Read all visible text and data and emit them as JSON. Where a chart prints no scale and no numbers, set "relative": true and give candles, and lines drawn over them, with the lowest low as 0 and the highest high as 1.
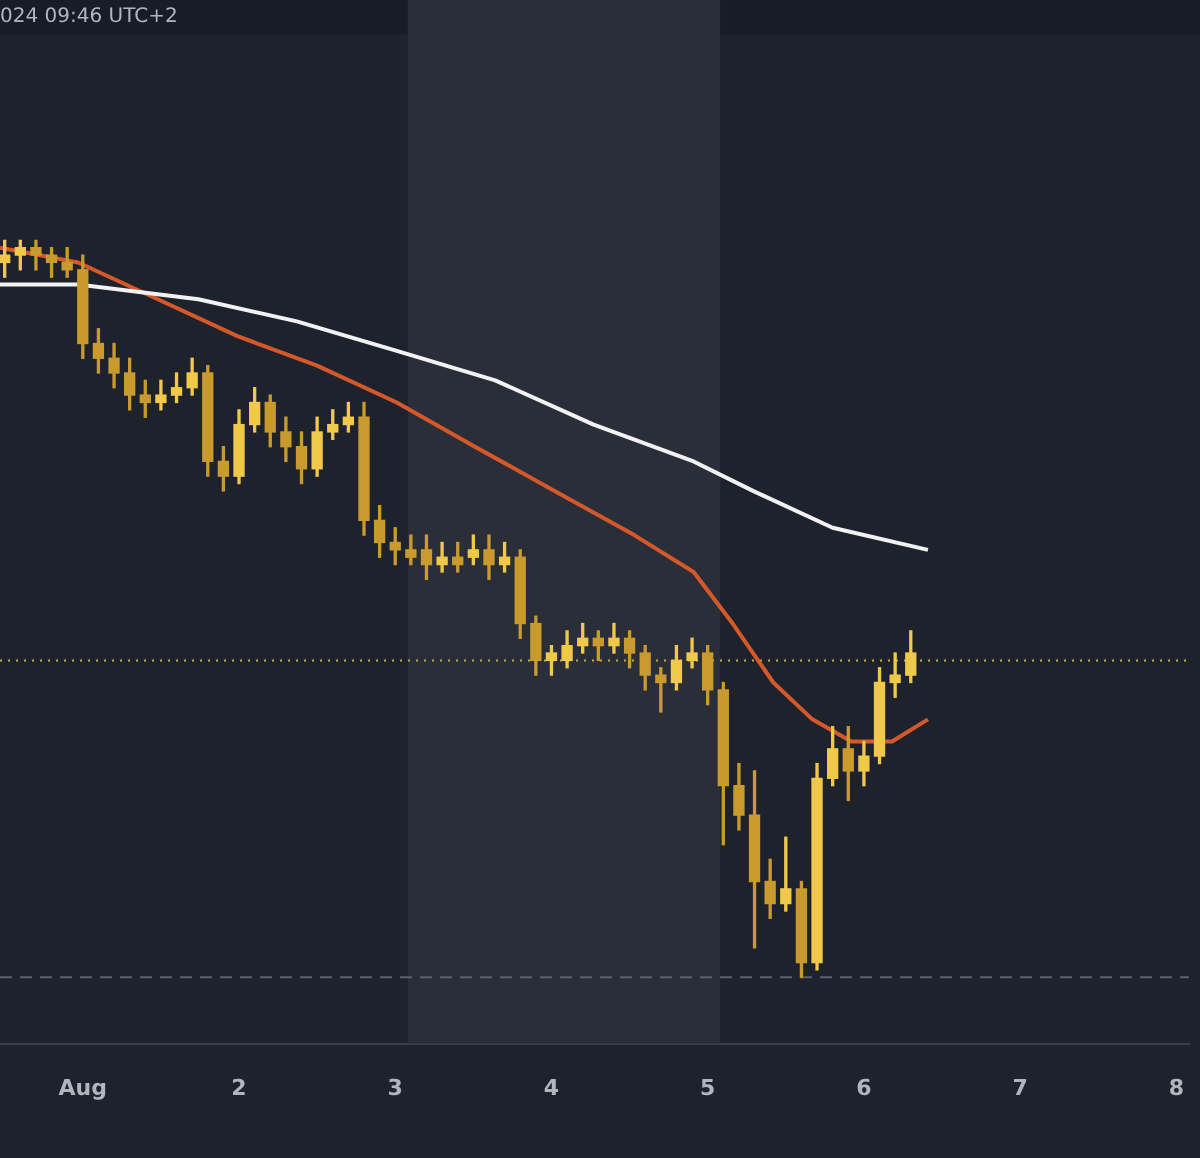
{
  "chart_data": {
    "type": "candlestick",
    "relative": true,
    "annotations": [
      "024 09:46 UTC+2"
    ],
    "xlim": [
      0.47,
      8.08
    ],
    "xticks": [
      {
        "value": 1,
        "label": "Aug"
      },
      2,
      3,
      4,
      5,
      6,
      7,
      8
    ],
    "grid": false,
    "legend": false,
    "bands": [
      {
        "axis": "x",
        "from": 3.08,
        "to": 5.08,
        "color": "#2a2e39"
      }
    ],
    "ref_lines": [
      {
        "axis": "y",
        "value": 0.43,
        "color": "#c9a93a",
        "line_style": "dotted"
      },
      {
        "axis": "y",
        "value": 0,
        "color": "#5d6068",
        "line_style": "dashed"
      }
    ],
    "series": [
      {
        "type": "candlestick",
        "colors": [
          "#f0c94a",
          "#f0c94a",
          "#c99a2e",
          "#c99a2e",
          "#c99a2e",
          "#c99a2e",
          "#c99a2e",
          "#c99a2e",
          "#c99a2e",
          "#c99a2e",
          "#f0c94a",
          "#f0c94a",
          "#f0c94a",
          "#c99a2e",
          "#c99a2e",
          "#f0c94a",
          "#f0c94a",
          "#c99a2e",
          "#c99a2e",
          "#c99a2e",
          "#f0c94a",
          "#f0c94a",
          "#f0c94a",
          "#c99a2e",
          "#c99a2e",
          "#c99a2e",
          "#c99a2e",
          "#c99a2e",
          "#f0c94a",
          "#c99a2e",
          "#f0c94a",
          "#c99a2e",
          "#f0c94a",
          "#c99a2e",
          "#c99a2e",
          "#f0c94a",
          "#f0c94a",
          "#f0c94a",
          "#c99a2e",
          "#f0c94a",
          "#c99a2e",
          "#c99a2e",
          "#c99a2e",
          "#f0c94a",
          "#f0c94a",
          "#c99a2e",
          "#c99a2e",
          "#c99a2e",
          "#c99a2e",
          "#c99a2e",
          "#f0c94a",
          "#c99a2e",
          "#f0c94a",
          "#f0c94a",
          "#c99a2e",
          "#f0c94a",
          "#f0c94a",
          "#f0c94a",
          "#f0c94a"
        ],
        "x": [
          0.5,
          0.6,
          0.7,
          0.8,
          0.9,
          1.0,
          1.1,
          1.2,
          1.3,
          1.4,
          1.5,
          1.6,
          1.7,
          1.8,
          1.9,
          2.0,
          2.1,
          2.2,
          2.3,
          2.4,
          2.5,
          2.6,
          2.7,
          2.8,
          2.9,
          3.0,
          3.1,
          3.2,
          3.3,
          3.4,
          3.5,
          3.6,
          3.7,
          3.8,
          3.9,
          4.0,
          4.1,
          4.2,
          4.3,
          4.4,
          4.5,
          4.6,
          4.7,
          4.8,
          4.9,
          5.0,
          5.1,
          5.2,
          5.3,
          5.4,
          5.5,
          5.6,
          5.7,
          5.8,
          5.9,
          6.0,
          6.1,
          6.2,
          6.3
        ],
        "ohlc": [
          [
            0.97,
            1.0,
            0.95,
            0.98
          ],
          [
            0.98,
            1.0,
            0.96,
            0.99
          ],
          [
            0.99,
            1.0,
            0.96,
            0.98
          ],
          [
            0.98,
            0.99,
            0.95,
            0.97
          ],
          [
            0.97,
            0.99,
            0.95,
            0.96
          ],
          [
            0.96,
            0.98,
            0.84,
            0.86
          ],
          [
            0.86,
            0.88,
            0.82,
            0.84
          ],
          [
            0.84,
            0.86,
            0.8,
            0.82
          ],
          [
            0.82,
            0.84,
            0.77,
            0.79
          ],
          [
            0.79,
            0.81,
            0.76,
            0.78
          ],
          [
            0.78,
            0.81,
            0.77,
            0.79
          ],
          [
            0.79,
            0.82,
            0.78,
            0.8
          ],
          [
            0.8,
            0.84,
            0.79,
            0.82
          ],
          [
            0.82,
            0.83,
            0.68,
            0.7
          ],
          [
            0.7,
            0.72,
            0.66,
            0.68
          ],
          [
            0.68,
            0.77,
            0.67,
            0.75
          ],
          [
            0.75,
            0.8,
            0.74,
            0.78
          ],
          [
            0.78,
            0.79,
            0.72,
            0.74
          ],
          [
            0.74,
            0.76,
            0.7,
            0.72
          ],
          [
            0.72,
            0.74,
            0.67,
            0.69
          ],
          [
            0.69,
            0.76,
            0.68,
            0.74
          ],
          [
            0.74,
            0.77,
            0.73,
            0.75
          ],
          [
            0.75,
            0.78,
            0.74,
            0.76
          ],
          [
            0.76,
            0.78,
            0.6,
            0.62
          ],
          [
            0.62,
            0.64,
            0.57,
            0.59
          ],
          [
            0.59,
            0.61,
            0.56,
            0.58
          ],
          [
            0.58,
            0.6,
            0.56,
            0.57
          ],
          [
            0.58,
            0.6,
            0.54,
            0.56
          ],
          [
            0.56,
            0.59,
            0.55,
            0.57
          ],
          [
            0.57,
            0.59,
            0.55,
            0.56
          ],
          [
            0.57,
            0.6,
            0.56,
            0.58
          ],
          [
            0.58,
            0.6,
            0.54,
            0.56
          ],
          [
            0.56,
            0.59,
            0.55,
            0.57
          ],
          [
            0.57,
            0.58,
            0.46,
            0.48
          ],
          [
            0.48,
            0.49,
            0.41,
            0.43
          ],
          [
            0.43,
            0.45,
            0.41,
            0.44
          ],
          [
            0.43,
            0.47,
            0.42,
            0.45
          ],
          [
            0.45,
            0.48,
            0.44,
            0.46
          ],
          [
            0.46,
            0.47,
            0.43,
            0.45
          ],
          [
            0.45,
            0.48,
            0.44,
            0.46
          ],
          [
            0.46,
            0.47,
            0.42,
            0.44
          ],
          [
            0.44,
            0.45,
            0.39,
            0.41
          ],
          [
            0.41,
            0.42,
            0.36,
            0.4
          ],
          [
            0.4,
            0.45,
            0.39,
            0.43
          ],
          [
            0.43,
            0.46,
            0.42,
            0.44
          ],
          [
            0.44,
            0.45,
            0.37,
            0.39
          ],
          [
            0.39,
            0.4,
            0.18,
            0.26
          ],
          [
            0.26,
            0.29,
            0.2,
            0.22
          ],
          [
            0.22,
            0.28,
            0.04,
            0.13
          ],
          [
            0.13,
            0.16,
            0.08,
            0.1
          ],
          [
            0.1,
            0.19,
            0.09,
            0.12
          ],
          [
            0.12,
            0.13,
            0.0,
            0.02
          ],
          [
            0.02,
            0.29,
            0.01,
            0.27
          ],
          [
            0.27,
            0.34,
            0.26,
            0.31
          ],
          [
            0.31,
            0.34,
            0.24,
            0.28
          ],
          [
            0.28,
            0.32,
            0.26,
            0.3
          ],
          [
            0.3,
            0.42,
            0.29,
            0.4
          ],
          [
            0.4,
            0.44,
            0.38,
            0.41
          ],
          [
            0.41,
            0.47,
            0.4,
            0.44
          ]
        ]
      },
      {
        "type": "line",
        "color": "#f2f2f2",
        "x": [
          0.47,
          0.97,
          1.74,
          2.37,
          3.01,
          3.64,
          4.27,
          4.91,
          5.29,
          5.8,
          6.41
        ],
        "values": [
          0.94,
          0.94,
          0.92,
          0.89,
          0.85,
          0.81,
          0.75,
          0.7,
          0.66,
          0.61,
          0.58
        ]
      },
      {
        "type": "line",
        "color": "#d4582a",
        "x": [
          0.47,
          0.97,
          1.48,
          1.99,
          2.5,
          3.01,
          3.51,
          4.02,
          4.53,
          4.91,
          5.16,
          5.42,
          5.67,
          5.92,
          6.18,
          6.41
        ],
        "values": [
          0.99,
          0.97,
          0.92,
          0.87,
          0.83,
          0.78,
          0.72,
          0.66,
          0.6,
          0.55,
          0.48,
          0.4,
          0.35,
          0.32,
          0.32,
          0.35
        ]
      }
    ]
  }
}
